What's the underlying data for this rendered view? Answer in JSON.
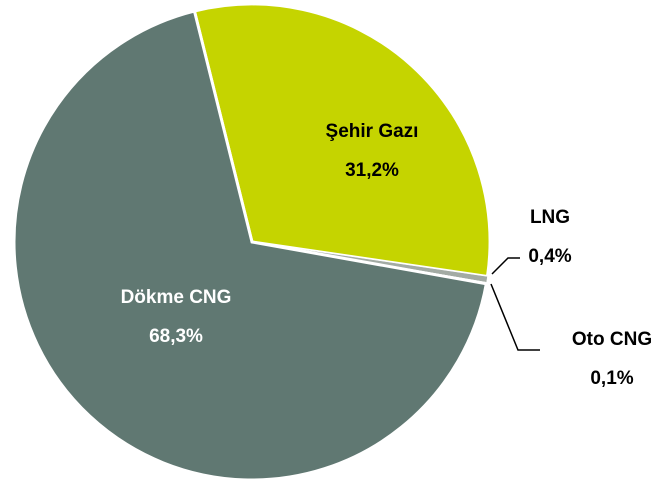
{
  "chart_data": {
    "type": "pie",
    "categories": [
      "Şehir Gazı",
      "LNG",
      "Oto CNG",
      "Dökme CNG"
    ],
    "values": [
      31.2,
      0.4,
      0.1,
      68.3
    ],
    "value_labels": [
      "31,2%",
      "0,4%",
      "0,1%",
      "68,3%"
    ],
    "colors": [
      "#c5d400",
      "#a3aba4",
      "#2e6b3e",
      "#607872"
    ]
  }
}
